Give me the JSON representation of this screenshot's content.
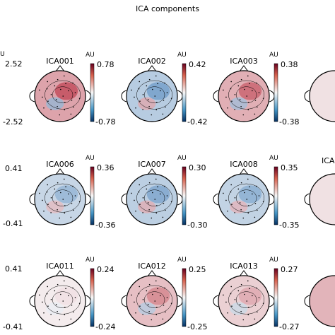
{
  "figure": {
    "title": "ICA components",
    "left_partial_colorbars": [
      {
        "max": "2.52",
        "min": "-2.52",
        "unit": "AU"
      },
      {
        "max": "0.41",
        "min": "-0.41"
      },
      {
        "max": "0.41",
        "min": "-0.41"
      }
    ],
    "right_partial_labels": [
      "",
      "ICA",
      ""
    ],
    "rows": [
      {
        "components": [
          {
            "label": "ICA001",
            "unit": "AU",
            "max": "0.78",
            "min": "-0.78",
            "level": 0.75
          },
          {
            "label": "ICA002",
            "unit": "AU",
            "max": "0.42",
            "min": "-0.42",
            "level": -0.6
          },
          {
            "label": "ICA003",
            "unit": "AU",
            "max": "0.38",
            "min": "-0.38",
            "level": 0.65
          }
        ]
      },
      {
        "components": [
          {
            "label": "ICA006",
            "unit": "AU",
            "max": "0.36",
            "min": "-0.36",
            "level": -0.45
          },
          {
            "label": "ICA007",
            "unit": "AU",
            "max": "0.30",
            "min": "-0.30",
            "level": -0.55
          },
          {
            "label": "ICA008",
            "unit": "AU",
            "max": "0.35",
            "min": "-0.35",
            "level": -0.5
          }
        ]
      },
      {
        "components": [
          {
            "label": "ICA011",
            "unit": "AU",
            "max": "0.24",
            "min": "-0.24",
            "level": 0.1
          },
          {
            "label": "ICA012",
            "unit": "AU",
            "max": "0.25",
            "min": "-0.25",
            "level": 0.5
          },
          {
            "label": "ICA013",
            "unit": "AU",
            "max": "0.27",
            "min": "-0.27",
            "level": 0.35
          }
        ]
      }
    ],
    "colors": {
      "positive": "#b2182b",
      "neutral": "#f7f7f7",
      "negative": "#2166ac",
      "outline": "#000000"
    }
  }
}
